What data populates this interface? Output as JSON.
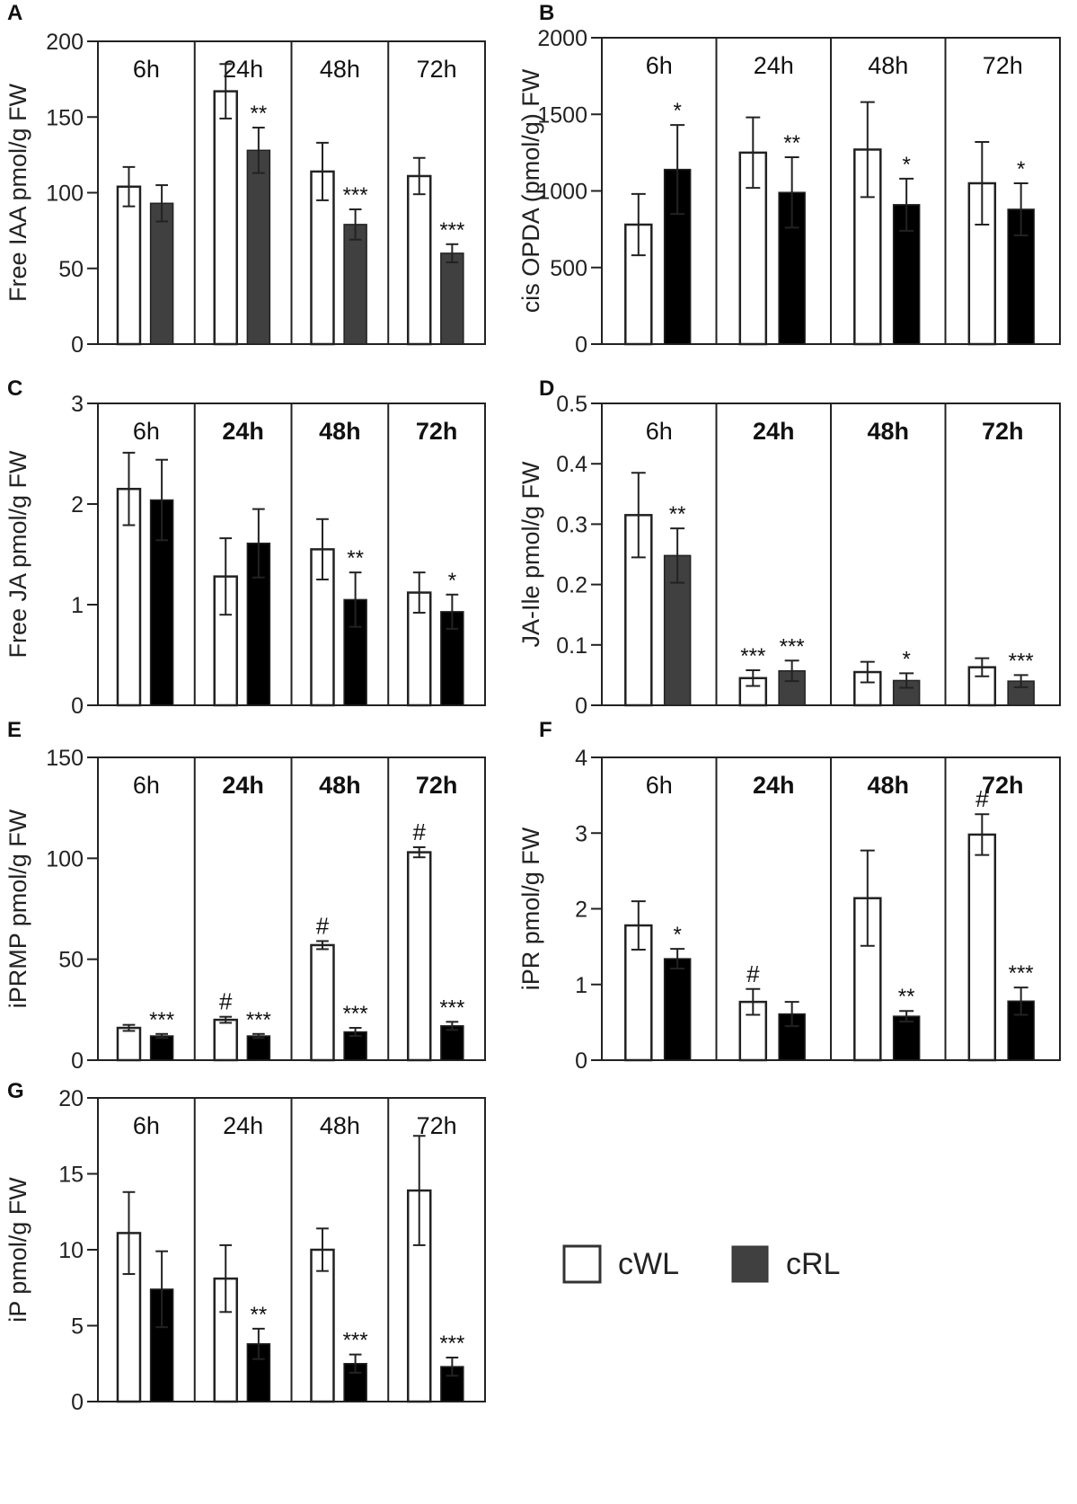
{
  "figure": {
    "legend": {
      "entries": [
        {
          "label": "cWL",
          "color": "#ffffff"
        },
        {
          "label": "cRL",
          "color": "#404040"
        }
      ]
    }
  },
  "chart_data": [
    {
      "panel": "A",
      "type": "bar",
      "ylabel": "Free IAA pmol/g FW",
      "ylim": [
        0,
        200
      ],
      "yticks": [
        0,
        50,
        100,
        150,
        200
      ],
      "groups": [
        "6h",
        "24h",
        "48h",
        "72h"
      ],
      "series": [
        {
          "name": "cWL",
          "color": "#ffffff",
          "values": [
            104,
            167,
            114,
            111
          ],
          "errors": [
            13,
            18,
            19,
            12
          ],
          "marks": [
            "",
            "",
            "",
            ""
          ]
        },
        {
          "name": "cRL",
          "color": "#404040",
          "values": [
            93,
            128,
            79,
            60
          ],
          "errors": [
            12,
            15,
            10,
            6
          ],
          "marks": [
            "",
            "**",
            "***",
            "***"
          ]
        }
      ]
    },
    {
      "panel": "B",
      "type": "bar",
      "ylabel": "cis OPDA (pmol/g) FW",
      "ylim": [
        0,
        2000
      ],
      "yticks": [
        0,
        500,
        1000,
        1500,
        2000
      ],
      "groups": [
        "6h",
        "24h",
        "48h",
        "72h"
      ],
      "series": [
        {
          "name": "cWL",
          "color": "#ffffff",
          "values": [
            780,
            1250,
            1270,
            1050
          ],
          "errors": [
            200,
            230,
            310,
            270
          ],
          "marks": [
            "",
            "",
            "",
            ""
          ]
        },
        {
          "name": "cRL",
          "color": "#000000",
          "values": [
            1140,
            990,
            910,
            880
          ],
          "errors": [
            290,
            230,
            170,
            170
          ],
          "marks": [
            "*",
            "**",
            "*",
            "*"
          ]
        }
      ]
    },
    {
      "panel": "C",
      "type": "bar",
      "ylabel": "Free JA  pmol/g FW",
      "ylim": [
        0,
        3
      ],
      "yticks": [
        0,
        1,
        2,
        3
      ],
      "groups": [
        "6h",
        "24h",
        "48h",
        "72h"
      ],
      "series": [
        {
          "name": "cWL",
          "color": "#ffffff",
          "values": [
            2.15,
            1.28,
            1.55,
            1.12
          ],
          "errors": [
            0.36,
            0.38,
            0.3,
            0.2
          ],
          "marks": [
            "",
            "",
            "",
            ""
          ]
        },
        {
          "name": "cRL",
          "color": "#000000",
          "values": [
            2.04,
            1.61,
            1.05,
            0.93
          ],
          "errors": [
            0.4,
            0.34,
            0.27,
            0.17
          ],
          "marks": [
            "",
            "",
            "**",
            "*"
          ]
        }
      ]
    },
    {
      "panel": "D",
      "type": "bar",
      "ylabel": "JA-Ile  pmol/g FW",
      "ylim": [
        0,
        0.5
      ],
      "yticks": [
        0,
        0.1,
        0.2,
        0.3,
        0.4,
        0.5
      ],
      "groups": [
        "6h",
        "24h",
        "48h",
        "72h"
      ],
      "series": [
        {
          "name": "cWL",
          "color": "#ffffff",
          "values": [
            0.315,
            0.045,
            0.055,
            0.063
          ],
          "errors": [
            0.07,
            0.013,
            0.017,
            0.015
          ],
          "marks": [
            "",
            "***",
            "",
            ""
          ]
        },
        {
          "name": "cRL",
          "color": "#404040",
          "values": [
            0.248,
            0.057,
            0.041,
            0.04
          ],
          "errors": [
            0.045,
            0.017,
            0.012,
            0.01
          ],
          "marks": [
            "**",
            "***",
            "*",
            "***"
          ]
        }
      ]
    },
    {
      "panel": "E",
      "type": "bar",
      "ylabel": "iPRMP pmol/g FW",
      "ylim": [
        0,
        150
      ],
      "yticks": [
        0,
        50,
        100,
        150
      ],
      "groups": [
        "6h",
        "24h",
        "48h",
        "72h"
      ],
      "series": [
        {
          "name": "cWL",
          "color": "#ffffff",
          "values": [
            16,
            20,
            57,
            103
          ],
          "errors": [
            1.5,
            1.5,
            2,
            2.5
          ],
          "marks": [
            "",
            "#",
            "#",
            "#"
          ]
        },
        {
          "name": "cRL",
          "color": "#000000",
          "values": [
            12,
            12,
            14,
            17
          ],
          "errors": [
            1,
            1,
            2,
            2
          ],
          "marks": [
            "***",
            "***",
            "***",
            "***"
          ]
        }
      ]
    },
    {
      "panel": "F",
      "type": "bar",
      "ylabel": "iPR pmol/g FW",
      "ylim": [
        0,
        4
      ],
      "yticks": [
        0,
        1,
        2,
        3,
        4
      ],
      "groups": [
        "6h",
        "24h",
        "48h",
        "72h"
      ],
      "series": [
        {
          "name": "cWL",
          "color": "#ffffff",
          "values": [
            1.78,
            0.77,
            2.14,
            2.98
          ],
          "errors": [
            0.32,
            0.17,
            0.63,
            0.27
          ],
          "marks": [
            "",
            "#",
            "",
            "#"
          ]
        },
        {
          "name": "cRL",
          "color": "#000000",
          "values": [
            1.34,
            0.61,
            0.58,
            0.78
          ],
          "errors": [
            0.13,
            0.16,
            0.07,
            0.18
          ],
          "marks": [
            "*",
            "",
            "**",
            "***"
          ]
        }
      ]
    },
    {
      "panel": "G",
      "type": "bar",
      "ylabel": "iP  pmol/g FW",
      "ylim": [
        0,
        20
      ],
      "yticks": [
        0,
        5,
        10,
        15,
        20
      ],
      "groups": [
        "6h",
        "24h",
        "48h",
        "72h"
      ],
      "series": [
        {
          "name": "cWL",
          "color": "#ffffff",
          "values": [
            11.1,
            8.1,
            10.0,
            13.9
          ],
          "errors": [
            2.7,
            2.2,
            1.4,
            3.6
          ],
          "marks": [
            "",
            "",
            "",
            ""
          ]
        },
        {
          "name": "cRL",
          "color": "#000000",
          "values": [
            7.4,
            3.8,
            2.5,
            2.3
          ],
          "errors": [
            2.5,
            1.0,
            0.6,
            0.6
          ],
          "marks": [
            "",
            "**",
            "***",
            "***"
          ]
        }
      ]
    }
  ]
}
